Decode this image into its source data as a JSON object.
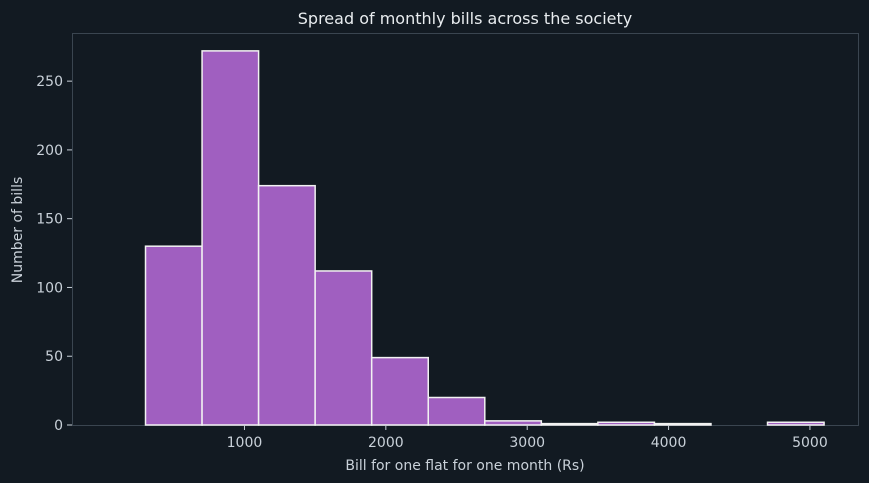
{
  "chart_data": {
    "type": "histogram",
    "title": "Spread of monthly bills across the society",
    "xlabel": "Bill for one flat for one month (Rs)",
    "ylabel": "Number of bills",
    "xlim": [
      -220,
      5340
    ],
    "ylim": [
      0,
      285
    ],
    "x_ticks": [
      1000,
      2000,
      3000,
      4000,
      5000
    ],
    "y_ticks": [
      0,
      50,
      100,
      150,
      200,
      250
    ],
    "bins": [
      {
        "start": 300,
        "end": 700,
        "count": 130
      },
      {
        "start": 700,
        "end": 1100,
        "count": 272
      },
      {
        "start": 1100,
        "end": 1500,
        "count": 174
      },
      {
        "start": 1500,
        "end": 1900,
        "count": 112
      },
      {
        "start": 1900,
        "end": 2300,
        "count": 49
      },
      {
        "start": 2300,
        "end": 2700,
        "count": 20
      },
      {
        "start": 2700,
        "end": 3100,
        "count": 3
      },
      {
        "start": 3100,
        "end": 3500,
        "count": 1
      },
      {
        "start": 3500,
        "end": 3900,
        "count": 2
      },
      {
        "start": 3900,
        "end": 4300,
        "count": 1
      },
      {
        "start": 4300,
        "end": 4700,
        "count": 0
      },
      {
        "start": 4700,
        "end": 5100,
        "count": 2
      }
    ],
    "grid": false,
    "bar_color": "#a05fc0",
    "edge_color": "#f2f2f2"
  }
}
